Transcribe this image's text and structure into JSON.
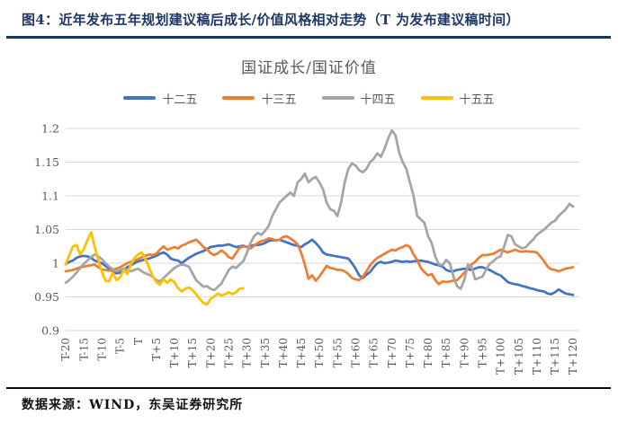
{
  "figure": {
    "title": "图4：近年发布五年规划建议稿后成长/价值风格相对走势（T 为发布建议稿时间）",
    "source": "数据来源：WIND，东吴证券研究所"
  },
  "chart_data": {
    "type": "line",
    "title": "国证成长/国证价值",
    "xlabel": "",
    "ylabel": "",
    "xlim": [
      -20,
      120
    ],
    "ylim": [
      0.9,
      1.2
    ],
    "grid": true,
    "legend_position": "top",
    "colors": {
      "accent_header": "#1f3864",
      "gridline": "#d9d9d9",
      "axis_text": "#595959"
    },
    "y_ticks": [
      {
        "value": 1.2,
        "label": "1.2"
      },
      {
        "value": 1.15,
        "label": "1.15"
      },
      {
        "value": 1.1,
        "label": "1.1"
      },
      {
        "value": 1.05,
        "label": "1.05"
      },
      {
        "value": 1.0,
        "label": "1"
      },
      {
        "value": 0.95,
        "label": "0.95"
      },
      {
        "value": 0.9,
        "label": "0.9"
      }
    ],
    "x_ticks": [
      {
        "t": -20,
        "label": "T-20"
      },
      {
        "t": -15,
        "label": "T-15"
      },
      {
        "t": -10,
        "label": "T-10"
      },
      {
        "t": -5,
        "label": "T-5"
      },
      {
        "t": 0,
        "label": "T"
      },
      {
        "t": 5,
        "label": "T+5"
      },
      {
        "t": 10,
        "label": "T+10"
      },
      {
        "t": 15,
        "label": "T+15"
      },
      {
        "t": 20,
        "label": "T+20"
      },
      {
        "t": 25,
        "label": "T+25"
      },
      {
        "t": 30,
        "label": "T+30"
      },
      {
        "t": 35,
        "label": "T+35"
      },
      {
        "t": 40,
        "label": "T+40"
      },
      {
        "t": 45,
        "label": "T+45"
      },
      {
        "t": 50,
        "label": "T+50"
      },
      {
        "t": 55,
        "label": "T+55"
      },
      {
        "t": 60,
        "label": "T+60"
      },
      {
        "t": 65,
        "label": "T+65"
      },
      {
        "t": 70,
        "label": "T+70"
      },
      {
        "t": 75,
        "label": "T+75"
      },
      {
        "t": 80,
        "label": "T+80"
      },
      {
        "t": 85,
        "label": "T+85"
      },
      {
        "t": 90,
        "label": "T+90"
      },
      {
        "t": 95,
        "label": "T+95"
      },
      {
        "t": 100,
        "label": "T+100"
      },
      {
        "t": 105,
        "label": "T+105"
      },
      {
        "t": 110,
        "label": "T+110"
      },
      {
        "t": 115,
        "label": "T+115"
      },
      {
        "t": 120,
        "label": "T+120"
      }
    ],
    "series": [
      {
        "key": "plan-12",
        "name": "十二五",
        "color": "#4472c4",
        "t_start": -20,
        "t_step": 1,
        "values": [
          0.999,
          1.002,
          1.004,
          1.008,
          1.01,
          1.011,
          1.01,
          1.008,
          1.004,
          1.002,
          1.0,
          0.996,
          0.992,
          0.988,
          0.985,
          0.986,
          0.99,
          0.994,
          0.997,
          1.0,
          1.003,
          1.004,
          1.006,
          1.007,
          1.009,
          1.011,
          1.014,
          1.016,
          1.013,
          1.007,
          1.005,
          1.004,
          1.0,
          1.004,
          1.008,
          1.011,
          1.014,
          1.016,
          1.018,
          1.021,
          1.024,
          1.025,
          1.026,
          1.026,
          1.027,
          1.028,
          1.026,
          1.024,
          1.025,
          1.026,
          1.024,
          1.026,
          1.027,
          1.027,
          1.028,
          1.03,
          1.033,
          1.034,
          1.034,
          1.035,
          1.033,
          1.031,
          1.029,
          1.027,
          1.026,
          1.024,
          1.028,
          1.031,
          1.035,
          1.03,
          1.024,
          1.016,
          1.013,
          1.012,
          1.011,
          1.01,
          1.009,
          1.008,
          1.007,
          1.0,
          0.992,
          0.982,
          0.978,
          0.983,
          0.987,
          0.994,
          1.0,
          1.002,
          1.0,
          1.001,
          1.002,
          1.004,
          1.003,
          1.002,
          1.003,
          1.002,
          1.003,
          1.003,
          1.004,
          1.003,
          1.002,
          1.0,
          0.998,
          0.997,
          0.995,
          0.99,
          0.988,
          0.988,
          0.99,
          0.991,
          0.992,
          0.991,
          0.99,
          0.992,
          0.994,
          0.994,
          0.992,
          0.99,
          0.987,
          0.984,
          0.982,
          0.977,
          0.972,
          0.97,
          0.969,
          0.968,
          0.966,
          0.965,
          0.963,
          0.962,
          0.96,
          0.959,
          0.958,
          0.955,
          0.954,
          0.957,
          0.961,
          0.958,
          0.955,
          0.954,
          0.953
        ]
      },
      {
        "key": "plan-13",
        "name": "十三五",
        "color": "#ed7d31",
        "t_start": -20,
        "t_step": 1,
        "values": [
          0.988,
          0.989,
          0.99,
          0.992,
          0.994,
          0.995,
          0.996,
          0.997,
          0.998,
          0.994,
          0.991,
          0.99,
          0.989,
          0.99,
          0.992,
          0.994,
          0.997,
          1.0,
          1.002,
          1.004,
          1.006,
          1.009,
          1.011,
          1.013,
          1.012,
          1.014,
          1.02,
          1.025,
          1.02,
          1.022,
          1.024,
          1.022,
          1.026,
          1.028,
          1.031,
          1.033,
          1.035,
          1.03,
          1.024,
          1.021,
          1.015,
          1.012,
          1.015,
          1.019,
          1.015,
          1.009,
          1.007,
          1.015,
          1.023,
          1.025,
          1.024,
          1.022,
          1.026,
          1.03,
          1.033,
          1.034,
          1.037,
          1.036,
          1.034,
          1.035,
          1.039,
          1.04,
          1.037,
          1.033,
          1.028,
          1.015,
          0.998,
          0.977,
          0.982,
          0.974,
          0.98,
          0.988,
          0.996,
          0.993,
          0.992,
          0.99,
          0.99,
          0.988,
          0.984,
          0.978,
          0.976,
          0.975,
          0.98,
          0.988,
          0.997,
          1.003,
          1.008,
          1.011,
          1.014,
          1.017,
          1.02,
          1.019,
          1.022,
          1.024,
          1.027,
          1.024,
          1.013,
          1.005,
          0.993,
          0.987,
          0.982,
          0.984,
          0.975,
          0.969,
          0.973,
          0.972,
          0.973,
          0.974,
          0.975,
          0.98,
          0.986,
          0.992,
          0.998,
          1.002,
          1.008,
          1.012,
          1.012,
          1.013,
          1.014,
          1.017,
          1.02,
          1.018,
          1.016,
          1.018,
          1.02,
          1.018,
          1.017,
          1.018,
          1.017,
          1.017,
          1.016,
          1.01,
          1.003,
          0.995,
          0.991,
          0.99,
          0.988,
          0.99,
          0.992,
          0.993,
          0.994
        ]
      },
      {
        "key": "plan-14",
        "name": "十四五",
        "color": "#a5a5a5",
        "t_start": -20,
        "t_step": 1,
        "values": [
          0.971,
          0.975,
          0.98,
          0.986,
          0.993,
          0.999,
          1.004,
          1.009,
          1.013,
          1.01,
          1.006,
          1.0,
          0.995,
          0.991,
          0.988,
          0.99,
          0.992,
          0.99,
          0.988,
          0.99,
          0.992,
          0.988,
          0.985,
          0.983,
          0.98,
          0.975,
          0.973,
          0.978,
          0.983,
          0.988,
          0.993,
          0.996,
          0.998,
          0.997,
          0.995,
          0.985,
          0.975,
          0.97,
          0.965,
          0.966,
          0.962,
          0.96,
          0.965,
          0.97,
          0.98,
          0.99,
          0.995,
          0.993,
          0.998,
          1.003,
          1.015,
          1.03,
          1.04,
          1.045,
          1.042,
          1.048,
          1.055,
          1.07,
          1.08,
          1.09,
          1.095,
          1.1,
          1.105,
          1.1,
          1.12,
          1.125,
          1.133,
          1.12,
          1.125,
          1.128,
          1.12,
          1.11,
          1.09,
          1.08,
          1.078,
          1.07,
          1.09,
          1.12,
          1.14,
          1.148,
          1.145,
          1.138,
          1.135,
          1.14,
          1.15,
          1.155,
          1.163,
          1.158,
          1.17,
          1.185,
          1.197,
          1.19,
          1.165,
          1.15,
          1.14,
          1.12,
          1.1,
          1.07,
          1.065,
          1.06,
          1.04,
          1.03,
          1.01,
          0.998,
          0.997,
          1.005,
          1.0,
          0.98,
          0.966,
          0.962,
          0.975,
          0.998,
          0.995,
          0.976,
          0.978,
          0.98,
          0.99,
          0.999,
          1.003,
          1.008,
          1.01,
          1.025,
          1.042,
          1.04,
          1.028,
          1.025,
          1.022,
          1.024,
          1.03,
          1.035,
          1.042,
          1.046,
          1.05,
          1.055,
          1.06,
          1.063,
          1.07,
          1.075,
          1.08,
          1.088,
          1.084
        ]
      },
      {
        "key": "plan-15",
        "name": "十五五",
        "color": "#ffc000",
        "t_start": -20,
        "t_step": 1,
        "values": [
          0.998,
          1.012,
          1.025,
          1.027,
          1.013,
          1.021,
          1.034,
          1.046,
          1.025,
          1.005,
          0.987,
          0.974,
          0.973,
          0.986,
          0.975,
          0.979,
          0.99,
          0.984,
          0.998,
          1.008,
          1.013,
          1.016,
          1.006,
          0.994,
          0.981,
          0.972,
          0.968,
          0.976,
          0.971,
          0.976,
          0.972,
          0.963,
          0.958,
          0.962,
          0.964,
          0.96,
          0.954,
          0.947,
          0.941,
          0.939,
          0.947,
          0.951,
          0.955,
          0.952,
          0.954,
          0.957,
          0.954,
          0.957,
          0.962,
          0.963
        ]
      }
    ]
  }
}
